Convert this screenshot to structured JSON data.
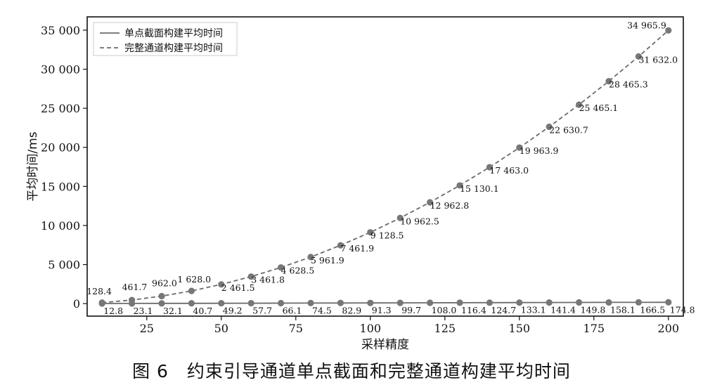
{
  "caption": "图 6　约束引导通道单点截面和完整通道构建平均时间",
  "chart_data": {
    "type": "line",
    "title": "",
    "xlabel": "采样精度",
    "ylabel": "平均时间/ms",
    "xlim": [
      5,
      205
    ],
    "ylim": [
      -1600,
      36700
    ],
    "x_ticks": [
      25,
      50,
      75,
      100,
      125,
      150,
      175,
      200
    ],
    "x_tick_labels": [
      "25",
      "50",
      "75",
      "100",
      "125",
      "150",
      "175",
      "200"
    ],
    "y_ticks": [
      0,
      5000,
      10000,
      15000,
      20000,
      25000,
      30000,
      35000
    ],
    "y_tick_labels": [
      "0",
      "5 000",
      "10 000",
      "15 000",
      "20 000",
      "25 000",
      "30 000",
      "35 000"
    ],
    "grid": false,
    "legend_position": "top-left",
    "x": [
      10,
      20,
      30,
      40,
      50,
      60,
      70,
      80,
      90,
      100,
      110,
      120,
      130,
      140,
      150,
      160,
      170,
      180,
      190,
      200
    ],
    "series": [
      {
        "name": "单点截面构建平均时间",
        "line_style": "solid",
        "color": "#6b6b6b",
        "values": [
          12.8,
          23.1,
          32.1,
          40.7,
          49.2,
          57.7,
          66.1,
          74.5,
          82.9,
          91.3,
          99.7,
          108.0,
          116.4,
          124.7,
          133.1,
          141.4,
          149.8,
          158.1,
          166.5,
          174.8
        ],
        "labels": [
          "12.8",
          "23.1",
          "32.1",
          "40.7",
          "49.2",
          "57.7",
          "66.1",
          "74.5",
          "82.9",
          "91.3",
          "99.7",
          "108.0",
          "116.4",
          "124.7",
          "133.1",
          "141.4",
          "149.8",
          "158.1",
          "166.5",
          "174.8"
        ]
      },
      {
        "name": "完整通道构建平均时间",
        "line_style": "dashed",
        "color": "#6b6b6b",
        "values": [
          128.4,
          461.7,
          962.0,
          1628.0,
          2461.5,
          3461.8,
          4628.5,
          5961.9,
          7461.9,
          9128.5,
          10962.5,
          12962.8,
          15130.1,
          17463.0,
          19963.9,
          22630.7,
          25465.1,
          28465.3,
          31632.0,
          34965.9
        ],
        "labels": [
          "128.4",
          "461.7",
          "962.0",
          "1 628.0",
          "2 461.5",
          "3 461.8",
          "4 628.5",
          "5 961.9",
          "7 461.9",
          "9 128.5",
          "10 962.5",
          "12 962.8",
          "15 130.1",
          "17 463.0",
          "19 963.9",
          "22 630.7",
          "25 465.1",
          "28 465.3",
          "31 632.0",
          "34 965.9"
        ]
      }
    ]
  }
}
